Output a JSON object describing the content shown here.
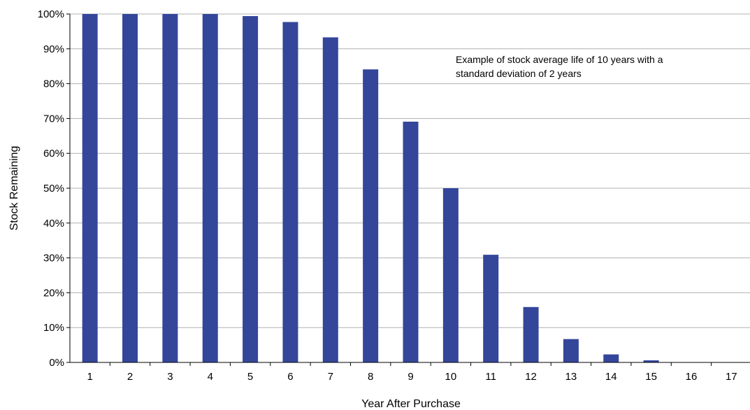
{
  "chart_data": {
    "type": "bar",
    "categories": [
      "1",
      "2",
      "3",
      "4",
      "5",
      "6",
      "7",
      "8",
      "9",
      "10",
      "11",
      "12",
      "13",
      "14",
      "15",
      "16",
      "17"
    ],
    "values": [
      100,
      100,
      100,
      100,
      99.4,
      97.7,
      93.3,
      84.1,
      69.1,
      50.0,
      30.9,
      15.9,
      6.7,
      2.3,
      0.6,
      0.1,
      0.0
    ],
    "xlabel": "Year After Purchase",
    "ylabel": "Stock Remaining",
    "ylim": [
      0,
      100
    ],
    "yticks": [
      "0%",
      "10%",
      "20%",
      "30%",
      "40%",
      "50%",
      "60%",
      "70%",
      "80%",
      "90%",
      "100%"
    ],
    "annotation": [
      "Example of stock average life of 10 years with a",
      "standard deviation of 2 years"
    ],
    "bar_color": "#34469a",
    "gridlines": true
  }
}
